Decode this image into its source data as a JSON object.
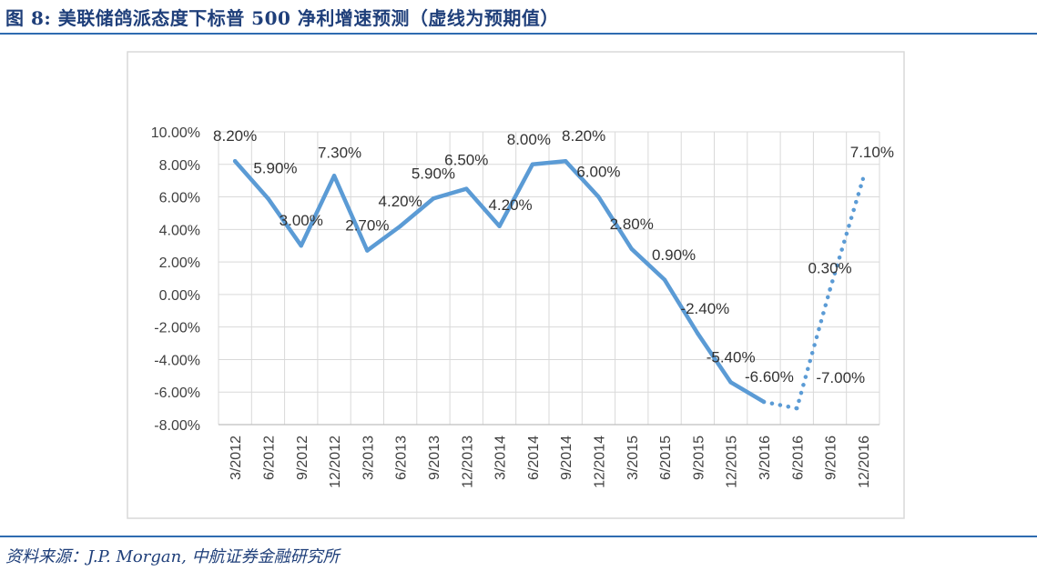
{
  "figure_title": "图 8: 美联储鸽派态度下标普 500 净利增速预测（虚线为预期值）",
  "source_text": "资料来源：J.P. Morgan, 中航证券金融研究所",
  "colors": {
    "line": "#5b9bd5",
    "title": "#1f3f7a",
    "rule": "#2e6bb0",
    "grid": "#d9d9d9"
  },
  "chart_data": {
    "type": "line",
    "title": "",
    "xlabel": "",
    "ylabel": "",
    "ylim": [
      -8,
      10
    ],
    "y_ticks": [
      10,
      8,
      6,
      4,
      2,
      0,
      -2,
      -4,
      -6,
      -8
    ],
    "y_tick_labels": [
      "10.00%",
      "8.00%",
      "6.00%",
      "4.00%",
      "2.00%",
      "0.00%",
      "-2.00%",
      "-4.00%",
      "-6.00%",
      "-8.00%"
    ],
    "categories": [
      "3/2012",
      "6/2012",
      "9/2012",
      "12/2012",
      "3/2013",
      "6/2013",
      "9/2013",
      "12/2013",
      "3/2014",
      "6/2014",
      "9/2014",
      "12/2014",
      "3/2015",
      "6/2015",
      "9/2015",
      "12/2015",
      "3/2016",
      "6/2016",
      "9/2016",
      "12/2016"
    ],
    "series": [
      {
        "name": "标普500净利增速",
        "values": [
          8.2,
          5.9,
          3.0,
          7.3,
          2.7,
          4.2,
          5.9,
          6.5,
          4.2,
          8.0,
          8.2,
          6.0,
          2.8,
          0.9,
          -2.4,
          -5.4,
          -6.6,
          -7.0,
          0.3,
          7.1
        ],
        "labels": [
          "8.20%",
          "5.90%",
          "3.00%",
          "7.30%",
          "2.70%",
          "4.20%",
          "5.90%",
          "6.50%",
          "4.20%",
          "8.00%",
          "8.20%",
          "6.00%",
          "2.80%",
          "0.90%",
          "-2.40%",
          "-5.40%",
          "-6.60%",
          "-7.00%",
          "0.30%",
          "7.10%"
        ],
        "actual_count": 17,
        "forecast_style": "dotted"
      }
    ],
    "grid": true
  }
}
